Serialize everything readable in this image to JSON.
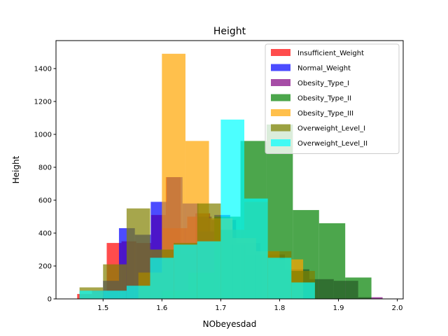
{
  "chart_data": {
    "type": "histogram",
    "title": "Height",
    "xlabel": "NObeyesdad",
    "ylabel": "Height",
    "xlim": [
      1.42,
      2.01
    ],
    "ylim": [
      0,
      1570
    ],
    "xticks": [
      "1.5",
      "1.6",
      "1.7",
      "1.8",
      "1.9",
      "2.0"
    ],
    "yticks": [
      "0",
      "200",
      "400",
      "600",
      "800",
      "1000",
      "1200",
      "1400"
    ],
    "alpha": 0.7,
    "legend_position": "upper right",
    "series": [
      {
        "name": "Insufficient_Weight",
        "color": "#ff0000",
        "edges": [
          1.456,
          1.4811,
          1.5062,
          1.5313,
          1.5564,
          1.5815,
          1.6066,
          1.6317,
          1.6568,
          1.6819,
          1.707
        ],
        "counts": [
          30,
          50,
          340,
          350,
          340,
          510,
          740,
          270,
          520,
          0
        ]
      },
      {
        "name": "Normal_Weight",
        "color": "#0000ff",
        "edges": [
          1.5,
          1.527,
          1.554,
          1.581,
          1.608,
          1.635,
          1.662,
          1.689,
          1.716,
          1.743,
          1.77
        ],
        "counts": [
          110,
          430,
          390,
          590,
          740,
          580,
          410,
          510,
          330,
          270
        ]
      },
      {
        "name": "Obesity_Type_I",
        "color": "#800080",
        "edges": [
          1.56,
          1.6015,
          1.643,
          1.6845,
          1.726,
          1.7675,
          1.809,
          1.8505,
          1.892,
          1.9335,
          1.975
        ],
        "counts": [
          160,
          430,
          500,
          480,
          340,
          270,
          180,
          120,
          110,
          10
        ]
      },
      {
        "name": "Obesity_Type_II",
        "color": "#008000",
        "edges": [
          1.6,
          1.6445,
          1.689,
          1.7335,
          1.778,
          1.8225,
          1.867,
          1.9115,
          1.956
        ],
        "counts": [
          50,
          160,
          500,
          960,
          1060,
          540,
          460,
          130
        ]
      },
      {
        "name": "Obesity_Type_III",
        "color": "#ffa500",
        "edges": [
          1.56,
          1.6,
          1.64,
          1.68,
          1.72,
          1.76,
          1.8,
          1.84
        ],
        "counts": [
          160,
          1490,
          960,
          490,
          370,
          290,
          240
        ]
      },
      {
        "name": "Overweight_Level_I",
        "color": "#808000",
        "edges": [
          1.46,
          1.5,
          1.54,
          1.58,
          1.62,
          1.66,
          1.7,
          1.74,
          1.78,
          1.82,
          1.86
        ],
        "counts": [
          70,
          210,
          550,
          300,
          340,
          580,
          420,
          590,
          290,
          170
        ]
      },
      {
        "name": "Overweight_Level_II",
        "color": "#00ffff",
        "edges": [
          1.46,
          1.5,
          1.54,
          1.58,
          1.62,
          1.66,
          1.7,
          1.74,
          1.78,
          1.82,
          1.86
        ],
        "counts": [
          50,
          50,
          80,
          250,
          330,
          350,
          1090,
          610,
          250,
          100
        ]
      }
    ]
  }
}
